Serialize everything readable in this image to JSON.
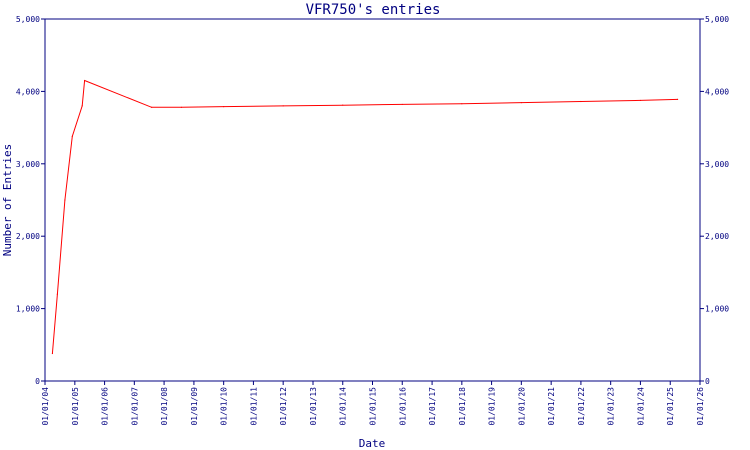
{
  "chart_data": {
    "type": "line",
    "title": "VFR750's entries",
    "xlabel": "Date",
    "ylabel": "Number of Entries",
    "ylim": [
      0,
      5000
    ],
    "y_ticks": [
      0,
      1000,
      2000,
      3000,
      4000,
      5000
    ],
    "y_tick_labels": [
      "0",
      "1,000",
      "2,000",
      "3,000",
      "4,000",
      "5,000"
    ],
    "x_ticks": [
      "2004-01-01",
      "2005-01-01",
      "2006-01-01",
      "2007-01-01",
      "2008-01-01",
      "2009-01-01",
      "2010-01-01",
      "2011-01-01",
      "2012-01-01",
      "2013-01-01",
      "2014-01-01",
      "2015-01-01",
      "2016-01-01",
      "2017-01-01",
      "2018-01-01",
      "2019-01-01",
      "2020-01-01",
      "2021-01-01",
      "2022-01-01",
      "2023-01-01",
      "2024-01-01",
      "2025-01-01",
      "2026-01-01"
    ],
    "x_tick_labels": [
      "01/01/04",
      "01/01/05",
      "01/01/06",
      "01/01/07",
      "01/01/08",
      "01/01/09",
      "01/01/10",
      "01/01/11",
      "01/01/12",
      "01/01/13",
      "01/01/14",
      "01/01/15",
      "01/01/16",
      "01/01/17",
      "01/01/18",
      "01/01/19",
      "01/01/20",
      "01/01/21",
      "01/01/22",
      "01/01/23",
      "01/01/24",
      "01/01/25",
      "01/01/26"
    ],
    "xlim": [
      "2004-01-01",
      "2026-01-01"
    ],
    "grid": false,
    "legend": "none",
    "dual_y_axis": true,
    "series": [
      {
        "color": "#ff0000",
        "x": [
          "2004-04-01",
          "2004-06-01",
          "2004-09-01",
          "2004-12-01",
          "2005-04-01",
          "2005-05-01",
          "2007-08-01",
          "2008-08-01",
          "2010-01-01",
          "2012-01-01",
          "2014-01-01",
          "2016-01-01",
          "2018-01-01",
          "2020-01-01",
          "2022-01-01",
          "2024-01-01",
          "2025-04-01"
        ],
        "y": [
          380,
          1200,
          2500,
          3380,
          3800,
          4150,
          3780,
          3780,
          3790,
          3800,
          3810,
          3820,
          3830,
          3845,
          3860,
          3875,
          3890
        ]
      }
    ]
  },
  "colors": {
    "axis": "#000080",
    "line": "#ff0000",
    "background": "#ffffff"
  }
}
